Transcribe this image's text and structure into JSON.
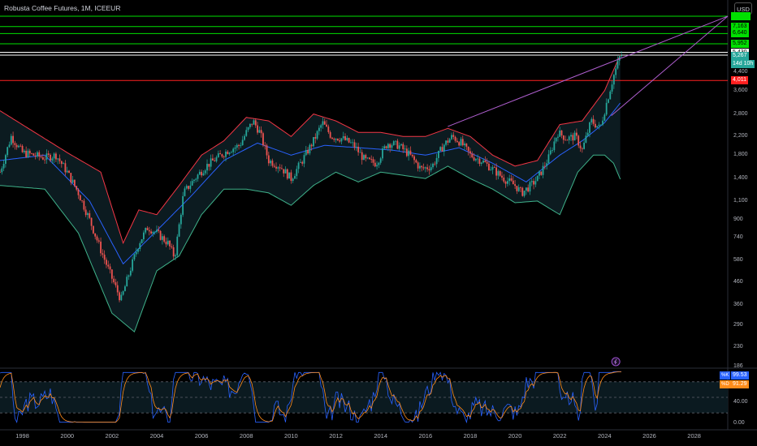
{
  "header": {
    "title": "Robusta Coffee Futures, 1M, ICEEUR",
    "currency": "USD",
    "colors": {
      "up": "#26a69a",
      "down": "#ef5350",
      "hline_green": "#00e000",
      "hline_white": "#ffffff",
      "hline_red": "#ff2020",
      "band": "#f23645",
      "basis": "#2962ff",
      "lower": "#3fb28a",
      "trend": "#b05fd0",
      "k": "#2962ff",
      "d": "#ff8c1a"
    }
  },
  "price_tags": [
    {
      "text": "7,163",
      "kind": "green"
    },
    {
      "text": "6,640",
      "kind": "green"
    },
    {
      "text": "5,952",
      "kind": "green"
    },
    {
      "text": "5,430",
      "kind": "white"
    },
    {
      "text": "5,267",
      "kind": "last"
    },
    {
      "text": "14d 10h",
      "kind": "last"
    },
    {
      "text": "4,011",
      "kind": "red"
    }
  ],
  "oscillator": {
    "k_label": "%K",
    "k_value": "99.53",
    "d_label": "%D",
    "d_value": "91.29"
  },
  "chart_data": {
    "type": "candlestick",
    "title": "Robusta Coffee Futures, 1M, ICEEUR",
    "xlabel": "",
    "ylabel": "",
    "y_scale": "log",
    "ylim": [
      186,
      8000
    ],
    "xlim": [
      1997.0,
      2029.5
    ],
    "x_ticks": [
      "1998",
      "2000",
      "2002",
      "2004",
      "2006",
      "2008",
      "2010",
      "2012",
      "2014",
      "2016",
      "2018",
      "2020",
      "2022",
      "2024",
      "2026",
      "2028"
    ],
    "y_ticks": [
      "4,400",
      "3,600",
      "2,800",
      "2,200",
      "1,800",
      "1,400",
      "1,100",
      "900",
      "740",
      "580",
      "460",
      "360",
      "290",
      "230",
      "186"
    ],
    "close_path": [
      [
        1997.0,
        1500
      ],
      [
        1997.5,
        2200
      ],
      [
        1998.0,
        1850
      ],
      [
        1998.5,
        1800
      ],
      [
        1999.0,
        1750
      ],
      [
        1999.5,
        1800
      ],
      [
        2000.0,
        1500
      ],
      [
        2000.5,
        1200
      ],
      [
        2001.0,
        900
      ],
      [
        2001.5,
        650
      ],
      [
        2002.0,
        480
      ],
      [
        2002.4,
        380
      ],
      [
        2002.8,
        520
      ],
      [
        2003.2,
        700
      ],
      [
        2003.6,
        830
      ],
      [
        2004.0,
        780
      ],
      [
        2004.5,
        700
      ],
      [
        2004.8,
        600
      ],
      [
        2005.2,
        1200
      ],
      [
        2005.7,
        1400
      ],
      [
        2006.2,
        1600
      ],
      [
        2006.7,
        1750
      ],
      [
        2007.2,
        1900
      ],
      [
        2007.7,
        2000
      ],
      [
        2008.0,
        2300
      ],
      [
        2008.3,
        2600
      ],
      [
        2008.6,
        2300
      ],
      [
        2009.0,
        1700
      ],
      [
        2009.5,
        1600
      ],
      [
        2010.0,
        1400
      ],
      [
        2010.5,
        1700
      ],
      [
        2011.0,
        2100
      ],
      [
        2011.4,
        2550
      ],
      [
        2011.8,
        2200
      ],
      [
        2012.3,
        2150
      ],
      [
        2012.8,
        2000
      ],
      [
        2013.3,
        1700
      ],
      [
        2013.8,
        1650
      ],
      [
        2014.3,
        2050
      ],
      [
        2014.8,
        2000
      ],
      [
        2015.3,
        1800
      ],
      [
        2015.8,
        1550
      ],
      [
        2016.3,
        1600
      ],
      [
        2016.8,
        2000
      ],
      [
        2017.2,
        2200
      ],
      [
        2017.6,
        2050
      ],
      [
        2018.0,
        1800
      ],
      [
        2018.5,
        1700
      ],
      [
        2019.0,
        1550
      ],
      [
        2019.5,
        1400
      ],
      [
        2020.0,
        1300
      ],
      [
        2020.3,
        1200
      ],
      [
        2020.7,
        1300
      ],
      [
        2021.0,
        1400
      ],
      [
        2021.5,
        1750
      ],
      [
        2021.9,
        2300
      ],
      [
        2022.3,
        2150
      ],
      [
        2022.7,
        2200
      ],
      [
        2023.0,
        1900
      ],
      [
        2023.4,
        2600
      ],
      [
        2023.8,
        2400
      ],
      [
        2024.1,
        3200
      ],
      [
        2024.4,
        4200
      ],
      [
        2024.7,
        5267
      ]
    ],
    "series": [
      {
        "name": "Price",
        "style": "candles"
      },
      {
        "name": "Bollinger upper",
        "values": [
          [
            1997,
            2900
          ],
          [
            2000,
            1850
          ],
          [
            2001.5,
            1500
          ],
          [
            2002.5,
            700
          ],
          [
            2003.2,
            1000
          ],
          [
            2004,
            950
          ],
          [
            2005,
            1300
          ],
          [
            2006,
            1800
          ],
          [
            2007,
            2100
          ],
          [
            2008,
            2700
          ],
          [
            2009,
            2600
          ],
          [
            2010,
            2200
          ],
          [
            2011,
            2800
          ],
          [
            2012,
            2600
          ],
          [
            2013,
            2300
          ],
          [
            2014,
            2300
          ],
          [
            2015,
            2200
          ],
          [
            2016,
            2200
          ],
          [
            2017,
            2400
          ],
          [
            2018,
            2200
          ],
          [
            2019,
            1800
          ],
          [
            2020,
            1600
          ],
          [
            2021,
            1700
          ],
          [
            2022,
            2500
          ],
          [
            2023,
            2600
          ],
          [
            2024,
            3600
          ],
          [
            2024.7,
            5300
          ]
        ]
      },
      {
        "name": "Bollinger basis",
        "values": [
          [
            1997,
            1700
          ],
          [
            1999,
            1800
          ],
          [
            2001,
            1100
          ],
          [
            2002.5,
            560
          ],
          [
            2004,
            800
          ],
          [
            2005.5,
            1150
          ],
          [
            2007,
            1700
          ],
          [
            2008.5,
            2050
          ],
          [
            2010,
            1800
          ],
          [
            2011.5,
            2000
          ],
          [
            2013,
            1950
          ],
          [
            2014.5,
            1900
          ],
          [
            2016,
            1800
          ],
          [
            2017.5,
            1950
          ],
          [
            2019,
            1650
          ],
          [
            2020.5,
            1350
          ],
          [
            2022,
            1800
          ],
          [
            2023,
            2100
          ],
          [
            2024,
            2550
          ],
          [
            2024.7,
            3150
          ]
        ]
      },
      {
        "name": "Bollinger lower",
        "values": [
          [
            1997,
            1300
          ],
          [
            1999,
            1250
          ],
          [
            2000.5,
            780
          ],
          [
            2002,
            330
          ],
          [
            2003,
            270
          ],
          [
            2004,
            520
          ],
          [
            2005,
            610
          ],
          [
            2006,
            950
          ],
          [
            2007,
            1250
          ],
          [
            2008,
            1250
          ],
          [
            2009,
            1200
          ],
          [
            2010,
            1050
          ],
          [
            2011,
            1300
          ],
          [
            2012,
            1500
          ],
          [
            2013,
            1350
          ],
          [
            2014,
            1500
          ],
          [
            2015,
            1450
          ],
          [
            2016,
            1400
          ],
          [
            2017,
            1600
          ],
          [
            2018,
            1400
          ],
          [
            2019,
            1250
          ],
          [
            2020,
            1080
          ],
          [
            2021,
            1100
          ],
          [
            2022,
            950
          ],
          [
            2022.8,
            1500
          ],
          [
            2023.5,
            1800
          ],
          [
            2024,
            1800
          ],
          [
            2024.4,
            1650
          ],
          [
            2024.7,
            1390
          ]
        ]
      },
      {
        "name": "Trendline A",
        "values": [
          [
            2017.0,
            2450
          ],
          [
            2029.5,
            8000
          ]
        ]
      },
      {
        "name": "Trendline B",
        "values": [
          [
            2024.3,
            2750
          ],
          [
            2029.5,
            8000
          ]
        ]
      }
    ],
    "horizontal_levels": [
      {
        "value": 8000,
        "color": "green"
      },
      {
        "value": 7163,
        "color": "green"
      },
      {
        "value": 6640,
        "color": "green"
      },
      {
        "value": 5952,
        "color": "green"
      },
      {
        "value": 5430,
        "color": "white"
      },
      {
        "value": 5267,
        "color": "white"
      },
      {
        "value": 4011,
        "color": "red"
      }
    ],
    "oscillator_panel": {
      "type": "line",
      "name": "Stochastic",
      "ylim": [
        0,
        100
      ],
      "y_ticks": [
        "40.00",
        "0.00"
      ],
      "levels": [
        80,
        50,
        20
      ],
      "k_last": 99.53,
      "d_last": 91.29
    }
  }
}
